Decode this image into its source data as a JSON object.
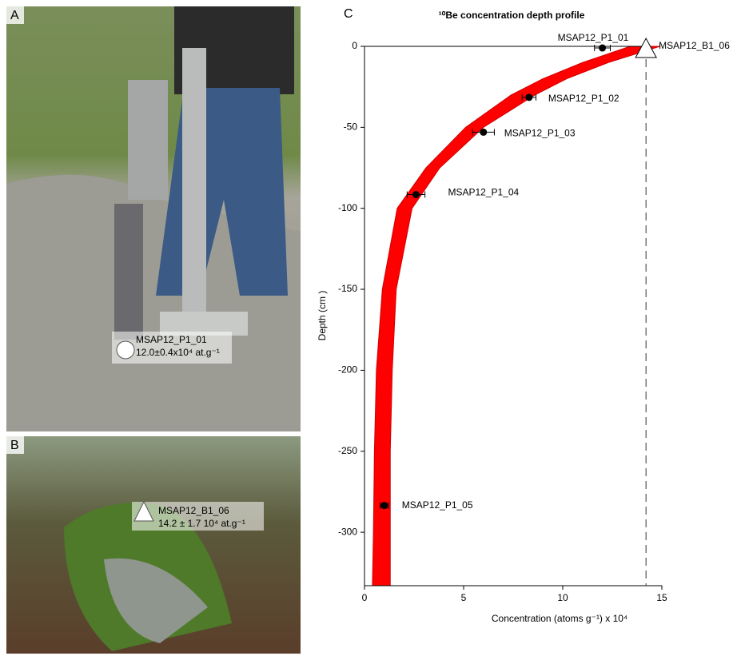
{
  "panels": {
    "a": {
      "label": "A",
      "sample": "MSAP12_P1_01",
      "value": "12.0±0.4x10⁴ at.g⁻¹"
    },
    "b": {
      "label": "B",
      "sample": "MSAP12_B1_06",
      "value": "14.2 ± 1.7 10⁴ at.g⁻¹"
    },
    "c": {
      "label": "C"
    }
  },
  "chart_data": {
    "type": "scatter",
    "title": "¹⁰Be concentration depth profile",
    "x_label": "Concentration (atoms g⁻¹) x 10⁴",
    "y_label": "Depth (cm )",
    "labels": [
      "MSAP12_P1_01",
      "MSAP12_P1_02",
      "MSAP12_P1_03",
      "MSAP12_P1_04",
      "MSAP12_P1_05"
    ],
    "x": [
      12.0,
      8.3,
      6.0,
      2.6,
      1.0
    ],
    "xerr": [
      0.4,
      0.35,
      0.55,
      0.45,
      0.2
    ],
    "y": [
      -1,
      -31.5,
      -53,
      -91.5,
      -283.5
    ],
    "color": "#000000",
    "reference": {
      "label": "MSAP12_B1_06",
      "x": 14.2,
      "y": -2
    },
    "band": {
      "color": "#ff0000",
      "depth": [
        0,
        -10,
        -20,
        -30,
        -50,
        -75,
        -100,
        -150,
        -200,
        -250,
        -300,
        -333
      ],
      "low": [
        13.4,
        11.0,
        9.0,
        7.4,
        5.1,
        3.1,
        1.65,
        0.9,
        0.6,
        0.5,
        0.45,
        0.4
      ],
      "high": [
        14.9,
        12.3,
        10.2,
        8.6,
        6.0,
        3.8,
        2.4,
        1.6,
        1.4,
        1.3,
        1.3,
        1.3
      ]
    },
    "xlim": [
      0,
      15
    ],
    "xticks": [
      0,
      5,
      10,
      15
    ],
    "ylim": [
      -333,
      0
    ],
    "yticks": [
      0,
      -50,
      -100,
      -150,
      -200,
      -250,
      -300
    ]
  }
}
